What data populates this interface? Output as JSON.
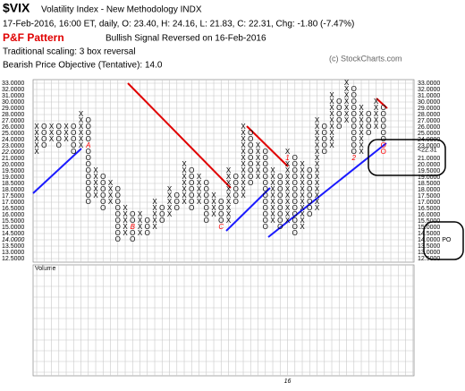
{
  "chart_data": {
    "type": "pnf",
    "title": "$VIX",
    "subtitle": "Volatility Index - New Methodology  INDX",
    "info": "17-Feb-2016, 16:00 ET, daily, O: 23.40, H: 24.16, L: 21.83, C: 22.31, Chg: -1.80 (-7.47%)",
    "pattern_label": "P&F Pattern",
    "pattern": "Bullish Signal Reversed on 16-Feb-2016",
    "scaling": "Traditional scaling: 3 box reversal",
    "objective": "Bearish Price Objective (Tentative): 14.0",
    "copyright": "(c) StockCharts.com",
    "volume_label": "Volume",
    "x_marker": {
      "column": 34,
      "label": "16"
    },
    "ylim": [
      12.5,
      33
    ],
    "yticks": [
      {
        "value": 33,
        "label": "33.0000"
      },
      {
        "value": 32,
        "label": "32.0000"
      },
      {
        "value": 31,
        "label": "31.0000"
      },
      {
        "value": 30,
        "label": "30.0000"
      },
      {
        "value": 29,
        "label": "29.0000"
      },
      {
        "value": 28,
        "label": "28.0000"
      },
      {
        "value": 27,
        "label": "27.0000"
      },
      {
        "value": 26,
        "label": "26.0000"
      },
      {
        "value": 25,
        "label": "25.0000"
      },
      {
        "value": 24,
        "label": "24.0000"
      },
      {
        "value": 23,
        "label": "23.0000"
      },
      {
        "value": 22,
        "label": "22.0000"
      },
      {
        "value": 21,
        "label": "21.0000"
      },
      {
        "value": 20,
        "label": "20.0000"
      },
      {
        "value": 19.5,
        "label": "19.5000"
      },
      {
        "value": 19,
        "label": "19.0000"
      },
      {
        "value": 18.5,
        "label": "18.5000"
      },
      {
        "value": 18,
        "label": "18.0000"
      },
      {
        "value": 17.5,
        "label": "17.5000"
      },
      {
        "value": 17,
        "label": "17.0000"
      },
      {
        "value": 16.5,
        "label": "16.5000"
      },
      {
        "value": 16,
        "label": "16.0000"
      },
      {
        "value": 15.5,
        "label": "15.5000"
      },
      {
        "value": 15,
        "label": "15.0000"
      },
      {
        "value": 14.5,
        "label": "14.5000"
      },
      {
        "value": 14,
        "label": "14.0000"
      },
      {
        "value": 13.5,
        "label": "13.5000"
      },
      {
        "value": 13,
        "label": "13.0000"
      },
      {
        "value": 12.5,
        "label": "12.5000"
      }
    ],
    "highlight_ticks": [
      22,
      14
    ],
    "highlight_color": "#ff0000",
    "price_tag": {
      "value": 22.31,
      "label": "<22.31"
    },
    "objective_tag": {
      "value": 14,
      "label": "14.0000 PO"
    },
    "marker_color": "#ff0000",
    "box_color": "#000000",
    "highlight": {
      "column": 47,
      "boxes": [
        23,
        22
      ],
      "color": "#ff0000"
    },
    "columns": [
      {
        "type": "X",
        "low": 22,
        "high": 26
      },
      {
        "type": "O",
        "low": 23,
        "high": 26
      },
      {
        "type": "X",
        "low": 24,
        "high": 26
      },
      {
        "type": "O",
        "low": 23,
        "high": 26
      },
      {
        "type": "X",
        "low": 24,
        "high": 26
      },
      {
        "type": "O",
        "low": 22,
        "high": 26
      },
      {
        "type": "X",
        "low": 23,
        "high": 28
      },
      {
        "type": "O",
        "low": 17,
        "high": 27,
        "marker": {
          "box": 23,
          "label": "A"
        }
      },
      {
        "type": "X",
        "low": 17.5,
        "high": 19.5
      },
      {
        "type": "O",
        "low": 16.5,
        "high": 19
      },
      {
        "type": "X",
        "low": 17,
        "high": 18.5
      },
      {
        "type": "O",
        "low": 14,
        "high": 18
      },
      {
        "type": "X",
        "low": 14.5,
        "high": 16.5
      },
      {
        "type": "O",
        "low": 14,
        "high": 16,
        "marker": {
          "box": 15,
          "label": "B"
        }
      },
      {
        "type": "X",
        "low": 14.5,
        "high": 16
      },
      {
        "type": "O",
        "low": 14.5,
        "high": 15.5
      },
      {
        "type": "X",
        "low": 15,
        "high": 17
      },
      {
        "type": "O",
        "low": 15.5,
        "high": 16.5
      },
      {
        "type": "X",
        "low": 16,
        "high": 18
      },
      {
        "type": "O",
        "low": 16.5,
        "high": 17.5
      },
      {
        "type": "X",
        "low": 17,
        "high": 20
      },
      {
        "type": "O",
        "low": 16.5,
        "high": 19.5
      },
      {
        "type": "X",
        "low": 17,
        "high": 19
      },
      {
        "type": "O",
        "low": 15.5,
        "high": 18.5
      },
      {
        "type": "X",
        "low": 16,
        "high": 17.5
      },
      {
        "type": "O",
        "low": 15,
        "high": 17,
        "marker": {
          "box": 15,
          "label": "C"
        }
      },
      {
        "type": "X",
        "low": 15.5,
        "high": 19.5
      },
      {
        "type": "O",
        "low": 17,
        "high": 19
      },
      {
        "type": "X",
        "low": 17.5,
        "high": 26
      },
      {
        "type": "O",
        "low": 18.5,
        "high": 25
      },
      {
        "type": "X",
        "low": 19,
        "high": 23
      },
      {
        "type": "O",
        "low": 15,
        "high": 22
      },
      {
        "type": "X",
        "low": 15.5,
        "high": 19.5
      },
      {
        "type": "O",
        "low": 15,
        "high": 19
      },
      {
        "type": "X",
        "low": 15.5,
        "high": 22,
        "marker": {
          "box": 21,
          "label": "1"
        }
      },
      {
        "type": "O",
        "low": 14.5,
        "high": 21
      },
      {
        "type": "X",
        "low": 15,
        "high": 20
      },
      {
        "type": "O",
        "low": 16,
        "high": 19.5
      },
      {
        "type": "X",
        "low": 16.5,
        "high": 27
      },
      {
        "type": "O",
        "low": 22,
        "high": 26
      },
      {
        "type": "X",
        "low": 23,
        "high": 31
      },
      {
        "type": "O",
        "low": 26,
        "high": 30
      },
      {
        "type": "X",
        "low": 27,
        "high": 33
      },
      {
        "type": "O",
        "low": 21,
        "high": 32,
        "marker": {
          "box": 21,
          "label": "2"
        }
      },
      {
        "type": "X",
        "low": 22,
        "high": 29
      },
      {
        "type": "O",
        "low": 25,
        "high": 28
      },
      {
        "type": "X",
        "low": 26,
        "high": 30
      },
      {
        "type": "O",
        "low": 22,
        "high": 29
      }
    ]
  }
}
